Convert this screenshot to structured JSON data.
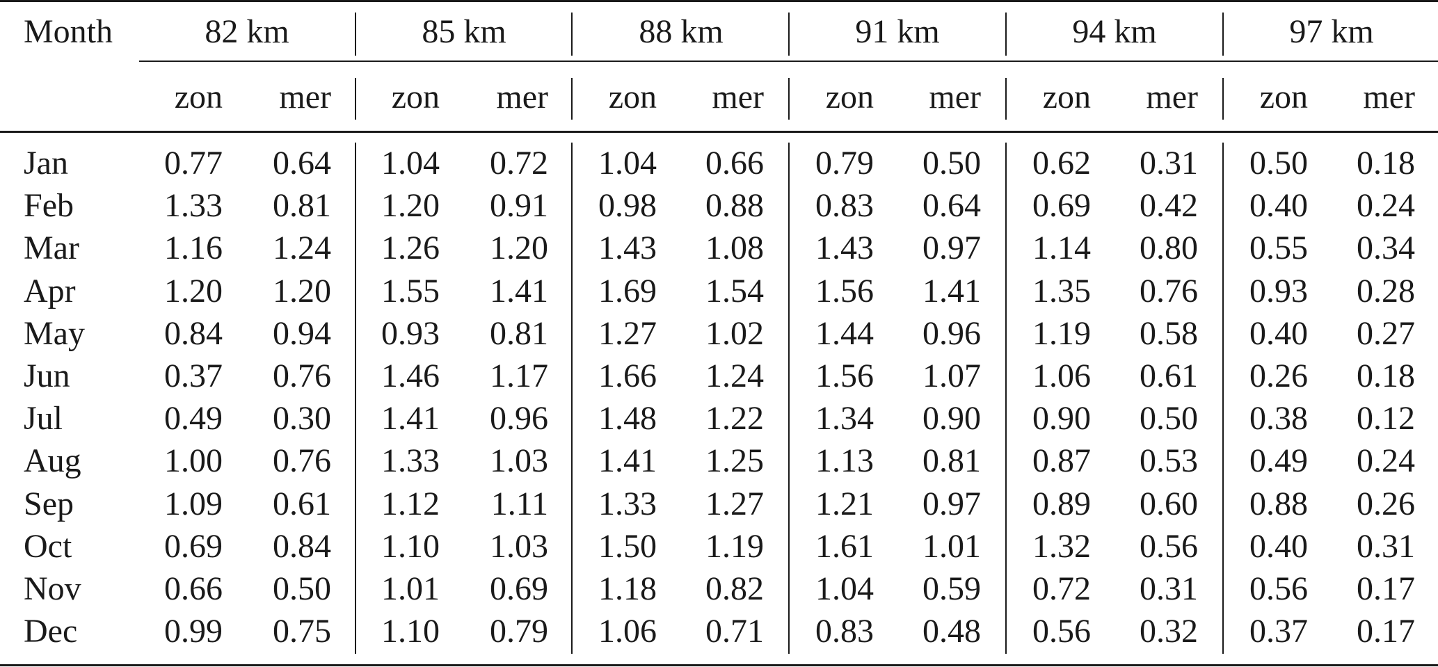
{
  "table": {
    "month_header": "Month",
    "altitudes": [
      "82 km",
      "85 km",
      "88 km",
      "91 km",
      "94 km",
      "97 km"
    ],
    "subheaders": [
      "zon",
      "mer"
    ],
    "rows": [
      {
        "month": "Jan",
        "values": [
          "0.77",
          "0.64",
          "1.04",
          "0.72",
          "1.04",
          "0.66",
          "0.79",
          "0.50",
          "0.62",
          "0.31",
          "0.50",
          "0.18"
        ]
      },
      {
        "month": "Feb",
        "values": [
          "1.33",
          "0.81",
          "1.20",
          "0.91",
          "0.98",
          "0.88",
          "0.83",
          "0.64",
          "0.69",
          "0.42",
          "0.40",
          "0.24"
        ]
      },
      {
        "month": "Mar",
        "values": [
          "1.16",
          "1.24",
          "1.26",
          "1.20",
          "1.43",
          "1.08",
          "1.43",
          "0.97",
          "1.14",
          "0.80",
          "0.55",
          "0.34"
        ]
      },
      {
        "month": "Apr",
        "values": [
          "1.20",
          "1.20",
          "1.55",
          "1.41",
          "1.69",
          "1.54",
          "1.56",
          "1.41",
          "1.35",
          "0.76",
          "0.93",
          "0.28"
        ]
      },
      {
        "month": "May",
        "values": [
          "0.84",
          "0.94",
          "0.93",
          "0.81",
          "1.27",
          "1.02",
          "1.44",
          "0.96",
          "1.19",
          "0.58",
          "0.40",
          "0.27"
        ]
      },
      {
        "month": "Jun",
        "values": [
          "0.37",
          "0.76",
          "1.46",
          "1.17",
          "1.66",
          "1.24",
          "1.56",
          "1.07",
          "1.06",
          "0.61",
          "0.26",
          "0.18"
        ]
      },
      {
        "month": "Jul",
        "values": [
          "0.49",
          "0.30",
          "1.41",
          "0.96",
          "1.48",
          "1.22",
          "1.34",
          "0.90",
          "0.90",
          "0.50",
          "0.38",
          "0.12"
        ]
      },
      {
        "month": "Aug",
        "values": [
          "1.00",
          "0.76",
          "1.33",
          "1.03",
          "1.41",
          "1.25",
          "1.13",
          "0.81",
          "0.87",
          "0.53",
          "0.49",
          "0.24"
        ]
      },
      {
        "month": "Sep",
        "values": [
          "1.09",
          "0.61",
          "1.12",
          "1.11",
          "1.33",
          "1.27",
          "1.21",
          "0.97",
          "0.89",
          "0.60",
          "0.88",
          "0.26"
        ]
      },
      {
        "month": "Oct",
        "values": [
          "0.69",
          "0.84",
          "1.10",
          "1.03",
          "1.50",
          "1.19",
          "1.61",
          "1.01",
          "1.32",
          "0.56",
          "0.40",
          "0.31"
        ]
      },
      {
        "month": "Nov",
        "values": [
          "0.66",
          "0.50",
          "1.01",
          "0.69",
          "1.18",
          "0.82",
          "1.04",
          "0.59",
          "0.72",
          "0.31",
          "0.56",
          "0.17"
        ]
      },
      {
        "month": "Dec",
        "values": [
          "0.99",
          "0.75",
          "1.10",
          "0.79",
          "1.06",
          "0.71",
          "0.83",
          "0.48",
          "0.56",
          "0.32",
          "0.37",
          "0.17"
        ]
      }
    ]
  }
}
